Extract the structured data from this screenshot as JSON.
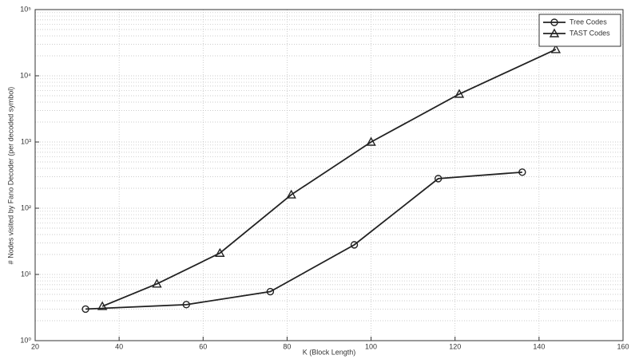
{
  "chart_data": {
    "type": "line",
    "xlabel": "K (Block Length)",
    "ylabel": "# Nodes visited by Fano Decoder (per decoded symbol)",
    "xlim": [
      20,
      160
    ],
    "xticks": [
      20,
      40,
      60,
      80,
      100,
      120,
      140,
      160
    ],
    "ylim": [
      1,
      100000
    ],
    "yscale": "log",
    "yticks": [
      {
        "value": 1,
        "label": "10⁰"
      },
      {
        "value": 10,
        "label": "10¹"
      },
      {
        "value": 100,
        "label": "10²"
      },
      {
        "value": 1000,
        "label": "10³"
      },
      {
        "value": 10000,
        "label": "10⁴"
      },
      {
        "value": 100000,
        "label": "10⁵"
      }
    ],
    "grid": true,
    "legend": "upper right",
    "series": [
      {
        "name": "Tree Codes",
        "color": "#222222",
        "marker": "o",
        "x": [
          32,
          56,
          76,
          96,
          116,
          136
        ],
        "values": [
          3,
          3.5,
          5.5,
          28,
          280,
          350
        ]
      },
      {
        "name": "TAST Codes",
        "color": "#222222",
        "marker": "^",
        "x": [
          36,
          49,
          64,
          81,
          100,
          121,
          144
        ],
        "values": [
          3.3,
          7.2,
          21,
          160,
          1000,
          5300,
          25000
        ]
      }
    ]
  }
}
